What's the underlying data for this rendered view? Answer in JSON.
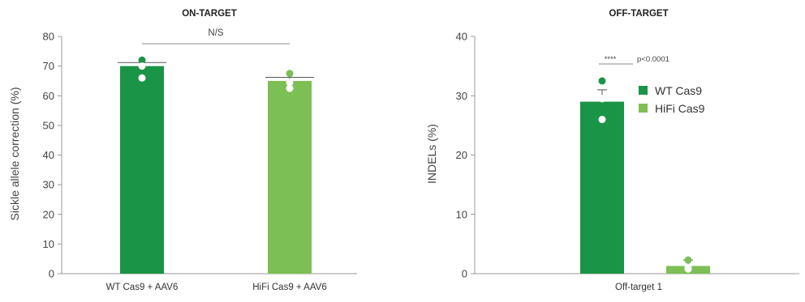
{
  "colors": {
    "wt": "#1a9447",
    "hifi": "#7cc055",
    "axis": "#999999",
    "bracket": "#8a8a8a"
  },
  "chart_data": [
    {
      "type": "bar",
      "title": "ON-TARGET",
      "ylabel": "Sickle allele correction (%)",
      "ylim": [
        0,
        80
      ],
      "yticks": [
        0,
        10,
        20,
        30,
        40,
        50,
        60,
        70,
        80
      ],
      "categories": [
        "WT Cas9 + AAV6",
        "HiFi Cas9 + AAV6"
      ],
      "values": [
        70,
        65
      ],
      "errors": [
        1.2,
        1.2
      ],
      "bar_colors": [
        "#1a9447",
        "#7cc055"
      ],
      "points": [
        [
          72,
          70,
          66
        ],
        [
          67.5,
          64.5,
          62.5
        ]
      ],
      "significance": "N/S"
    },
    {
      "type": "bar",
      "title": "OFF-TARGET",
      "ylabel": "INDELs (%)",
      "ylim": [
        0,
        40
      ],
      "yticks": [
        0,
        10,
        20,
        30,
        40
      ],
      "categories": [
        "Off-target 1"
      ],
      "series": [
        {
          "name": "WT Cas9",
          "value": 29,
          "error": 2,
          "color": "#1a9447",
          "points": [
            32.5,
            29.5,
            26
          ]
        },
        {
          "name": "HiFi Cas9",
          "value": 1.3,
          "error": 1,
          "color": "#7cc055",
          "points": [
            2.3,
            1.0,
            0.8
          ]
        }
      ],
      "significance": "****",
      "pvalue": "p<0.0001",
      "legend_position": "right"
    }
  ]
}
